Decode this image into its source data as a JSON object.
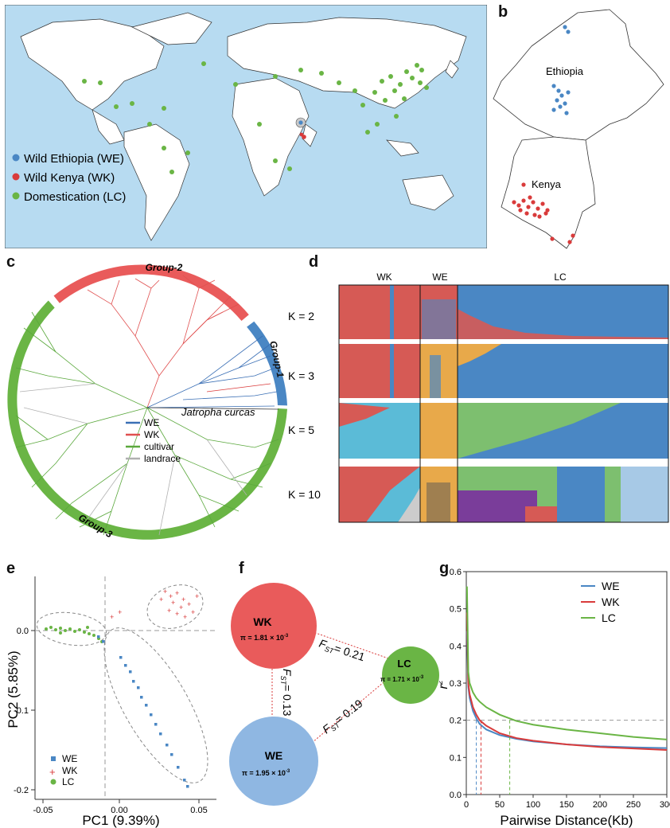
{
  "panels": {
    "a": "a",
    "b": "b",
    "c": "c",
    "d": "d",
    "e": "e",
    "f": "f",
    "g": "g"
  },
  "colors": {
    "WE": "#4a87c4",
    "WK": "#d93b3b",
    "LC": "#6ab545",
    "landrace": "#b8b8b8",
    "ocean": "#b7dbf1",
    "orange": "#e8a94a"
  },
  "map_world": {
    "legend": [
      "Wild Ethiopia (WE)",
      "Wild Kenya (WK)",
      "Domestication (LC)"
    ]
  },
  "map_region": {
    "ethiopia": "Ethiopia",
    "kenya": "Kenya"
  },
  "tree": {
    "groups": [
      "Group-2",
      "Group-1",
      "Group-3"
    ],
    "legend": [
      "WE",
      "WK",
      "cultivar",
      "landrace"
    ],
    "outgroup": "Jatropha curcas"
  },
  "structure": {
    "columns": [
      "WK",
      "WE",
      "LC"
    ],
    "rows": [
      "K = 2",
      "K = 3",
      "K = 5",
      "K = 10"
    ]
  },
  "pca": {
    "xlabel": "PC1 (9.39%)",
    "ylabel": "PC2 (5.85%)",
    "xticks": [
      "-0.05",
      "0.00",
      "0.05"
    ],
    "yticks": [
      "0.0",
      "-0.1",
      "-0.2"
    ],
    "legend": [
      "WE",
      "WK",
      "LC"
    ]
  },
  "fst": {
    "nodes": [
      {
        "name": "WK",
        "pi": "π = 1.81 × 10",
        "exp": "-3"
      },
      {
        "name": "LC",
        "pi": "π = 1.71 × 10",
        "exp": "-3"
      },
      {
        "name": "WE",
        "pi": "π = 1.95 × 10",
        "exp": "-3"
      }
    ],
    "edges": [
      {
        "label": "= 0.21"
      },
      {
        "label": "= 0.13"
      },
      {
        "label": "= 0.19"
      }
    ],
    "fst_symbol": "F",
    "fst_sub": "ST"
  },
  "chart_data": {
    "type": "line",
    "xlabel": "Pairwise Distance(Kb)",
    "ylabel": "r",
    "ylabel_sup": "2",
    "xlim": [
      0,
      300
    ],
    "ylim": [
      0,
      0.6
    ],
    "xticks": [
      0,
      50,
      100,
      150,
      200,
      250,
      300
    ],
    "yticks": [
      0.0,
      0.1,
      0.2,
      0.3,
      0.4,
      0.5,
      0.6
    ],
    "legend_position": "top-right",
    "series": [
      {
        "name": "WE",
        "x": [
          1,
          3,
          5,
          10,
          15,
          20,
          30,
          50,
          75,
          100,
          150,
          200,
          250,
          300
        ],
        "y": [
          0.44,
          0.29,
          0.26,
          0.225,
          0.205,
          0.19,
          0.175,
          0.16,
          0.15,
          0.143,
          0.135,
          0.13,
          0.127,
          0.125
        ]
      },
      {
        "name": "WK",
        "x": [
          1,
          3,
          5,
          10,
          15,
          20,
          30,
          50,
          75,
          100,
          150,
          200,
          250,
          300
        ],
        "y": [
          0.49,
          0.3,
          0.27,
          0.235,
          0.215,
          0.2,
          0.185,
          0.165,
          0.152,
          0.145,
          0.135,
          0.128,
          0.124,
          0.12
        ]
      },
      {
        "name": "LC",
        "x": [
          1,
          3,
          5,
          10,
          15,
          20,
          30,
          50,
          75,
          100,
          150,
          200,
          250,
          300
        ],
        "y": [
          0.56,
          0.33,
          0.3,
          0.275,
          0.26,
          0.25,
          0.235,
          0.215,
          0.198,
          0.188,
          0.175,
          0.165,
          0.155,
          0.148
        ]
      }
    ],
    "decay_points": [
      {
        "series": "WE",
        "x": 15
      },
      {
        "series": "WK",
        "x": 22
      },
      {
        "series": "LC",
        "x": 65
      }
    ],
    "threshold": 0.2
  }
}
